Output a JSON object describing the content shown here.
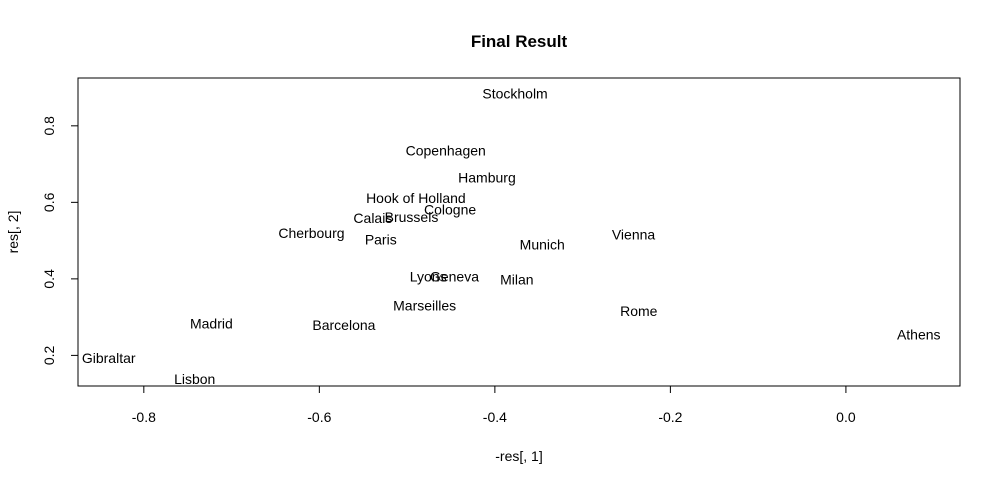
{
  "chart_data": {
    "type": "scatter",
    "title": "Final Result",
    "xlabel": "-res[, 1]",
    "ylabel": "res[, 2]",
    "xlim": [
      -0.875,
      0.13
    ],
    "ylim": [
      0.12,
      0.925
    ],
    "xticks": [
      {
        "value": -0.8,
        "label": "-0.8"
      },
      {
        "value": -0.6,
        "label": "-0.6"
      },
      {
        "value": -0.4,
        "label": "-0.4"
      },
      {
        "value": -0.2,
        "label": "-0.2"
      },
      {
        "value": 0.0,
        "label": "0.0"
      }
    ],
    "yticks": [
      {
        "value": 0.2,
        "label": "0.2"
      },
      {
        "value": 0.4,
        "label": "0.4"
      },
      {
        "value": 0.6,
        "label": "0.6"
      },
      {
        "value": 0.8,
        "label": "0.8"
      }
    ],
    "grid": false,
    "points": [
      {
        "label": "Stockholm",
        "x": -0.377,
        "y": 0.885
      },
      {
        "label": "Copenhagen",
        "x": -0.456,
        "y": 0.736
      },
      {
        "label": "Hamburg",
        "x": -0.409,
        "y": 0.665
      },
      {
        "label": "Hook of Holland",
        "x": -0.49,
        "y": 0.611
      },
      {
        "label": "Cologne",
        "x": -0.451,
        "y": 0.581
      },
      {
        "label": "Calais",
        "x": -0.539,
        "y": 0.559
      },
      {
        "label": "Brussels",
        "x": -0.495,
        "y": 0.562
      },
      {
        "label": "Cherbourg",
        "x": -0.609,
        "y": 0.52
      },
      {
        "label": "Paris",
        "x": -0.53,
        "y": 0.503
      },
      {
        "label": "Munich",
        "x": -0.346,
        "y": 0.49
      },
      {
        "label": "Vienna",
        "x": -0.242,
        "y": 0.516
      },
      {
        "label": "Lyons",
        "x": -0.476,
        "y": 0.406
      },
      {
        "label": "Geneva",
        "x": -0.446,
        "y": 0.406
      },
      {
        "label": "Milan",
        "x": -0.375,
        "y": 0.399
      },
      {
        "label": "Marseilles",
        "x": -0.48,
        "y": 0.33
      },
      {
        "label": "Rome",
        "x": -0.236,
        "y": 0.316
      },
      {
        "label": "Madrid",
        "x": -0.723,
        "y": 0.283
      },
      {
        "label": "Barcelona",
        "x": -0.572,
        "y": 0.279
      },
      {
        "label": "Athens",
        "x": 0.083,
        "y": 0.255
      },
      {
        "label": "Gibraltar",
        "x": -0.84,
        "y": 0.193
      },
      {
        "label": "Lisbon",
        "x": -0.742,
        "y": 0.138
      }
    ]
  }
}
